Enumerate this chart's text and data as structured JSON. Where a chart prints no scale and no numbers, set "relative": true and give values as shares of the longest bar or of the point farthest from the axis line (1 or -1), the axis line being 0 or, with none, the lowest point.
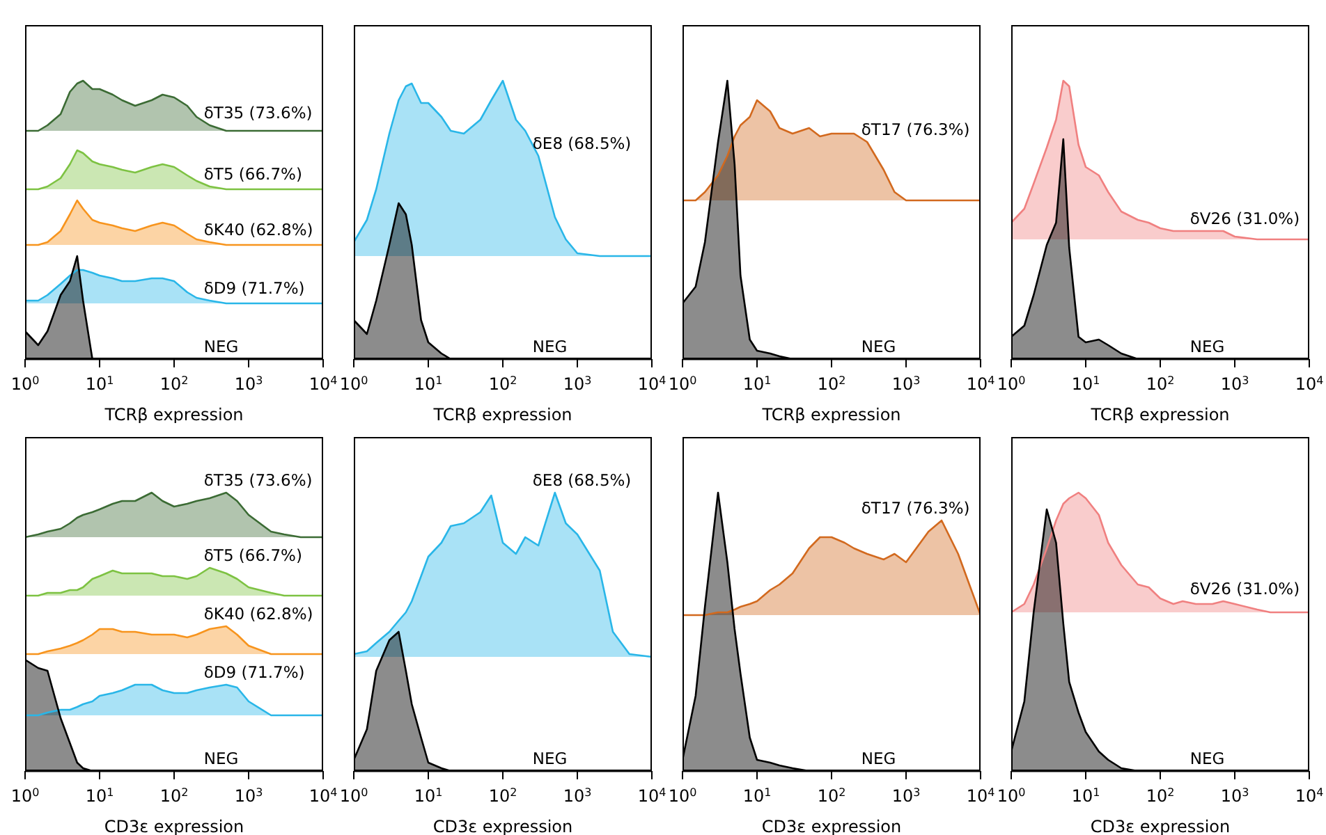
{
  "chart_data": [
    {
      "type": "area",
      "relative": true,
      "log": "x",
      "xlabel": "TCRβ expression",
      "xlim": [
        1,
        10000
      ],
      "xticks": [
        {
          "value": 1,
          "label": "10$^{0}$"
        },
        {
          "value": 10,
          "label": "10$^{1}$"
        },
        {
          "value": 100,
          "label": "10$^{2}$"
        },
        {
          "value": 1000,
          "label": "10$^{3}$"
        },
        {
          "value": 10000,
          "label": "10$^{4}$"
        }
      ],
      "x": [
        1,
        1.5,
        2,
        3,
        4,
        5,
        6,
        8,
        10,
        15,
        20,
        30,
        50,
        70,
        100,
        150,
        200,
        300,
        500,
        700,
        1000,
        2000,
        3000,
        5000,
        10000
      ],
      "series": [
        {
          "name": "δT35 (73.6%)",
          "color": "#3b6b34",
          "values": [
            0.82,
            0.82,
            0.84,
            0.88,
            0.96,
            0.99,
            1.0,
            0.97,
            0.97,
            0.95,
            0.93,
            0.91,
            0.93,
            0.95,
            0.94,
            0.91,
            0.87,
            0.84,
            0.82,
            0.82,
            0.82,
            0.82,
            0.82,
            0.82,
            0.82
          ]
        },
        {
          "name": "δT5 (66.7%)",
          "color": "#7dc242",
          "values": [
            0.61,
            0.61,
            0.62,
            0.65,
            0.7,
            0.75,
            0.74,
            0.71,
            0.7,
            0.69,
            0.68,
            0.67,
            0.69,
            0.7,
            0.69,
            0.66,
            0.64,
            0.62,
            0.61,
            0.61,
            0.61,
            0.61,
            0.61,
            0.61,
            0.61
          ]
        },
        {
          "name": "δK40 (62.8%)",
          "color": "#f7941d",
          "values": [
            0.41,
            0.41,
            0.42,
            0.46,
            0.52,
            0.57,
            0.54,
            0.5,
            0.49,
            0.48,
            0.47,
            0.46,
            0.48,
            0.49,
            0.48,
            0.45,
            0.43,
            0.42,
            0.41,
            0.41,
            0.41,
            0.41,
            0.41,
            0.41,
            0.41
          ]
        },
        {
          "name": "δD9 (71.7%)",
          "color": "#29b6e8",
          "values": [
            0.21,
            0.21,
            0.23,
            0.27,
            0.3,
            0.32,
            0.32,
            0.31,
            0.3,
            0.29,
            0.28,
            0.28,
            0.29,
            0.29,
            0.28,
            0.24,
            0.22,
            0.21,
            0.2,
            0.2,
            0.2,
            0.2,
            0.2,
            0.2,
            0.2
          ]
        },
        {
          "name": "NEG",
          "color": "#000000",
          "values": [
            0.1,
            0.05,
            0.1,
            0.23,
            0.28,
            0.37,
            0.21,
            0,
            0,
            0,
            0,
            0,
            0,
            0,
            0,
            0,
            0,
            0,
            0,
            0,
            0,
            0,
            0,
            0,
            0
          ]
        }
      ]
    },
    {
      "type": "area",
      "relative": true,
      "log": "x",
      "xlabel": "TCRβ expression",
      "xlim": [
        1,
        10000
      ],
      "xticks": [
        {
          "value": 1,
          "label": "10$^{0}$"
        },
        {
          "value": 10,
          "label": "10$^{1}$"
        },
        {
          "value": 100,
          "label": "10$^{2}$"
        },
        {
          "value": 1000,
          "label": "10$^{3}$"
        },
        {
          "value": 10000,
          "label": "10$^{4}$"
        }
      ],
      "x": [
        1,
        1.5,
        2,
        3,
        4,
        5,
        6,
        8,
        10,
        15,
        20,
        30,
        50,
        70,
        100,
        150,
        200,
        300,
        500,
        700,
        1000,
        2000,
        3000,
        5000,
        10000
      ],
      "series": [
        {
          "name": "δE8 (68.5%)",
          "color": "#29b6e8",
          "values": [
            0.42,
            0.5,
            0.61,
            0.81,
            0.93,
            0.98,
            0.99,
            0.92,
            0.92,
            0.87,
            0.82,
            0.81,
            0.86,
            0.93,
            1.0,
            0.86,
            0.82,
            0.73,
            0.51,
            0.43,
            0.38,
            0.37,
            0.37,
            0.37,
            0.37
          ]
        },
        {
          "name": "NEG",
          "color": "#000000",
          "values": [
            0.14,
            0.09,
            0.21,
            0.41,
            0.56,
            0.52,
            0.41,
            0.14,
            0.06,
            0.02,
            0,
            0,
            0,
            0,
            0,
            0,
            0,
            0,
            0,
            0,
            0,
            0,
            0,
            0,
            0
          ]
        }
      ]
    },
    {
      "type": "area",
      "relative": true,
      "log": "x",
      "xlabel": "TCRβ expression",
      "xlim": [
        1,
        10000
      ],
      "xticks": [
        {
          "value": 1,
          "label": "10$^{0}$"
        },
        {
          "value": 10,
          "label": "10$^{1}$"
        },
        {
          "value": 100,
          "label": "10$^{2}$"
        },
        {
          "value": 1000,
          "label": "10$^{3}$"
        },
        {
          "value": 10000,
          "label": "10$^{4}$"
        }
      ],
      "x": [
        1,
        1.5,
        2,
        3,
        4,
        5,
        6,
        8,
        10,
        15,
        20,
        30,
        50,
        70,
        100,
        150,
        200,
        300,
        500,
        700,
        1000,
        2000,
        3000,
        5000,
        10000
      ],
      "series": [
        {
          "name": "δT17 (76.3%)",
          "color": "#d2691e",
          "values": [
            0.57,
            0.57,
            0.6,
            0.66,
            0.73,
            0.8,
            0.84,
            0.87,
            0.93,
            0.89,
            0.83,
            0.81,
            0.83,
            0.8,
            0.81,
            0.81,
            0.81,
            0.78,
            0.68,
            0.6,
            0.57,
            0.57,
            0.57,
            0.57,
            0.57
          ]
        },
        {
          "name": "NEG",
          "color": "#000000",
          "values": [
            0.2,
            0.26,
            0.42,
            0.78,
            1.0,
            0.7,
            0.3,
            0.07,
            0.03,
            0.02,
            0.01,
            0,
            0,
            0,
            0,
            0,
            0,
            0,
            0,
            0,
            0,
            0,
            0,
            0,
            0
          ]
        }
      ]
    },
    {
      "type": "area",
      "relative": true,
      "log": "x",
      "xlabel": "TCRβ expression",
      "xlim": [
        1,
        10000
      ],
      "xticks": [
        {
          "value": 1,
          "label": "10$^{0}$"
        },
        {
          "value": 10,
          "label": "10$^{1}$"
        },
        {
          "value": 100,
          "label": "10$^{2}$"
        },
        {
          "value": 1000,
          "label": "10$^{3}$"
        },
        {
          "value": 10000,
          "label": "10$^{4}$"
        }
      ],
      "x": [
        1,
        1.5,
        2,
        3,
        4,
        5,
        6,
        8,
        10,
        15,
        20,
        30,
        50,
        70,
        100,
        150,
        200,
        300,
        500,
        700,
        1000,
        2000,
        3000,
        5000,
        10000
      ],
      "series": [
        {
          "name": "δV26 (31.0%)",
          "color": "#f08080",
          "values": [
            0.49,
            0.54,
            0.63,
            0.76,
            0.86,
            1.0,
            0.98,
            0.77,
            0.69,
            0.66,
            0.6,
            0.53,
            0.5,
            0.49,
            0.47,
            0.46,
            0.46,
            0.46,
            0.46,
            0.46,
            0.44,
            0.43,
            0.43,
            0.43,
            0.43
          ]
        },
        {
          "name": "NEG",
          "color": "#000000",
          "values": [
            0.08,
            0.12,
            0.23,
            0.41,
            0.49,
            0.79,
            0.4,
            0.08,
            0.06,
            0.07,
            0.05,
            0.02,
            0,
            0,
            0,
            0,
            0,
            0,
            0,
            0,
            0,
            0,
            0,
            0,
            0
          ]
        }
      ]
    },
    {
      "type": "area",
      "relative": true,
      "log": "x",
      "xlabel": "CD3ε expression",
      "xlim": [
        1,
        10000
      ],
      "xticks": [
        {
          "value": 1,
          "label": "10$^{0}$"
        },
        {
          "value": 10,
          "label": "10$^{1}$"
        },
        {
          "value": 100,
          "label": "10$^{2}$"
        },
        {
          "value": 1000,
          "label": "10$^{3}$"
        },
        {
          "value": 10000,
          "label": "10$^{4}$"
        }
      ],
      "x": [
        1,
        1.5,
        2,
        3,
        4,
        5,
        6,
        8,
        10,
        15,
        20,
        30,
        50,
        70,
        100,
        150,
        200,
        300,
        500,
        700,
        1000,
        2000,
        3000,
        5000,
        10000
      ],
      "series": [
        {
          "name": "δT35 (73.6%)",
          "color": "#3b6b34",
          "values": [
            0.84,
            0.85,
            0.86,
            0.87,
            0.89,
            0.91,
            0.92,
            0.93,
            0.94,
            0.96,
            0.97,
            0.97,
            1.0,
            0.97,
            0.95,
            0.96,
            0.97,
            0.98,
            1.0,
            0.97,
            0.92,
            0.86,
            0.85,
            0.84,
            0.84
          ]
        },
        {
          "name": "δT5 (66.7%)",
          "color": "#7dc242",
          "values": [
            0.63,
            0.63,
            0.64,
            0.64,
            0.65,
            0.65,
            0.66,
            0.69,
            0.7,
            0.72,
            0.71,
            0.71,
            0.71,
            0.7,
            0.7,
            0.69,
            0.7,
            0.73,
            0.71,
            0.69,
            0.66,
            0.64,
            0.63,
            0.63,
            0.63
          ]
        },
        {
          "name": "δK40 (62.8%)",
          "color": "#f7941d",
          "values": [
            0.42,
            0.42,
            0.43,
            0.44,
            0.45,
            0.46,
            0.47,
            0.49,
            0.51,
            0.51,
            0.5,
            0.5,
            0.49,
            0.49,
            0.49,
            0.48,
            0.49,
            0.51,
            0.52,
            0.49,
            0.45,
            0.42,
            0.42,
            0.42,
            0.42
          ]
        },
        {
          "name": "δD9 (71.7%)",
          "color": "#29b6e8",
          "values": [
            0.2,
            0.2,
            0.21,
            0.22,
            0.22,
            0.23,
            0.24,
            0.25,
            0.27,
            0.28,
            0.29,
            0.31,
            0.31,
            0.29,
            0.28,
            0.28,
            0.29,
            0.3,
            0.31,
            0.3,
            0.25,
            0.2,
            0.2,
            0.2,
            0.2
          ]
        },
        {
          "name": "NEG",
          "color": "#000000",
          "values": [
            0.4,
            0.37,
            0.36,
            0.19,
            0.1,
            0.03,
            0.01,
            0,
            0,
            0,
            0,
            0,
            0,
            0,
            0,
            0,
            0,
            0,
            0,
            0,
            0,
            0,
            0,
            0,
            0
          ]
        }
      ]
    },
    {
      "type": "area",
      "relative": true,
      "log": "x",
      "xlabel": "CD3ε expression",
      "xlim": [
        1,
        10000
      ],
      "xticks": [
        {
          "value": 1,
          "label": "10$^{0}$"
        },
        {
          "value": 10,
          "label": "10$^{1}$"
        },
        {
          "value": 100,
          "label": "10$^{2}$"
        },
        {
          "value": 1000,
          "label": "10$^{3}$"
        },
        {
          "value": 10000,
          "label": "10$^{4}$"
        }
      ],
      "x": [
        1,
        1.5,
        2,
        3,
        4,
        5,
        6,
        8,
        10,
        15,
        20,
        30,
        50,
        70,
        100,
        150,
        200,
        300,
        500,
        700,
        1000,
        2000,
        3000,
        5000,
        10000
      ],
      "series": [
        {
          "name": "δE8 (68.5%)",
          "color": "#29b6e8",
          "values": [
            0.42,
            0.43,
            0.46,
            0.5,
            0.54,
            0.57,
            0.61,
            0.7,
            0.77,
            0.82,
            0.88,
            0.89,
            0.93,
            0.99,
            0.82,
            0.78,
            0.84,
            0.81,
            1.0,
            0.89,
            0.85,
            0.72,
            0.5,
            0.42,
            0.41
          ]
        },
        {
          "name": "NEG",
          "color": "#000000",
          "values": [
            0.04,
            0.15,
            0.36,
            0.47,
            0.5,
            0.36,
            0.24,
            0.12,
            0.03,
            0.01,
            0,
            0,
            0,
            0,
            0,
            0,
            0,
            0,
            0,
            0,
            0,
            0,
            0,
            0,
            0
          ]
        }
      ]
    },
    {
      "type": "area",
      "relative": true,
      "log": "x",
      "xlabel": "CD3ε expression",
      "xlim": [
        1,
        10000
      ],
      "xticks": [
        {
          "value": 1,
          "label": "10$^{0}$"
        },
        {
          "value": 10,
          "label": "10$^{1}$"
        },
        {
          "value": 100,
          "label": "10$^{2}$"
        },
        {
          "value": 1000,
          "label": "10$^{3}$"
        },
        {
          "value": 10000,
          "label": "10$^{4}$"
        }
      ],
      "x": [
        1,
        1.5,
        2,
        3,
        4,
        5,
        6,
        8,
        10,
        15,
        20,
        30,
        50,
        70,
        100,
        150,
        200,
        300,
        500,
        700,
        1000,
        2000,
        3000,
        5000,
        10000
      ],
      "series": [
        {
          "name": "δT17 (76.3%)",
          "color": "#d2691e",
          "values": [
            0.56,
            0.56,
            0.56,
            0.57,
            0.57,
            0.58,
            0.59,
            0.6,
            0.61,
            0.65,
            0.67,
            0.71,
            0.8,
            0.84,
            0.84,
            0.82,
            0.8,
            0.78,
            0.76,
            0.78,
            0.75,
            0.86,
            0.9,
            0.78,
            0.56
          ]
        },
        {
          "name": "NEG",
          "color": "#000000",
          "values": [
            0.04,
            0.27,
            0.59,
            1.0,
            0.75,
            0.51,
            0.35,
            0.12,
            0.04,
            0.03,
            0.02,
            0.01,
            0,
            0,
            0,
            0,
            0,
            0,
            0,
            0,
            0,
            0,
            0,
            0,
            0
          ]
        }
      ]
    },
    {
      "type": "area",
      "relative": true,
      "log": "x",
      "xlabel": "CD3ε expression",
      "xlim": [
        1,
        10000
      ],
      "xticks": [
        {
          "value": 1,
          "label": "10$^{0}$"
        },
        {
          "value": 10,
          "label": "10$^{1}$"
        },
        {
          "value": 100,
          "label": "10$^{2}$"
        },
        {
          "value": 1000,
          "label": "10$^{3}$"
        },
        {
          "value": 10000,
          "label": "10$^{4}$"
        }
      ],
      "x": [
        1,
        1.5,
        2,
        3,
        4,
        5,
        6,
        8,
        10,
        15,
        20,
        30,
        50,
        70,
        100,
        150,
        200,
        300,
        500,
        700,
        1000,
        2000,
        3000,
        5000,
        10000
      ],
      "series": [
        {
          "name": "δV26 (31.0%)",
          "color": "#f08080",
          "values": [
            0.57,
            0.6,
            0.67,
            0.8,
            0.9,
            0.96,
            0.98,
            1.0,
            0.98,
            0.92,
            0.82,
            0.74,
            0.67,
            0.66,
            0.62,
            0.6,
            0.61,
            0.6,
            0.6,
            0.61,
            0.6,
            0.58,
            0.57,
            0.57,
            0.57
          ]
        },
        {
          "name": "NEG",
          "color": "#000000",
          "values": [
            0.07,
            0.25,
            0.57,
            0.94,
            0.82,
            0.53,
            0.32,
            0.21,
            0.14,
            0.07,
            0.04,
            0.01,
            0,
            0,
            0,
            0,
            0,
            0,
            0,
            0,
            0,
            0,
            0,
            0,
            0
          ]
        }
      ]
    }
  ]
}
